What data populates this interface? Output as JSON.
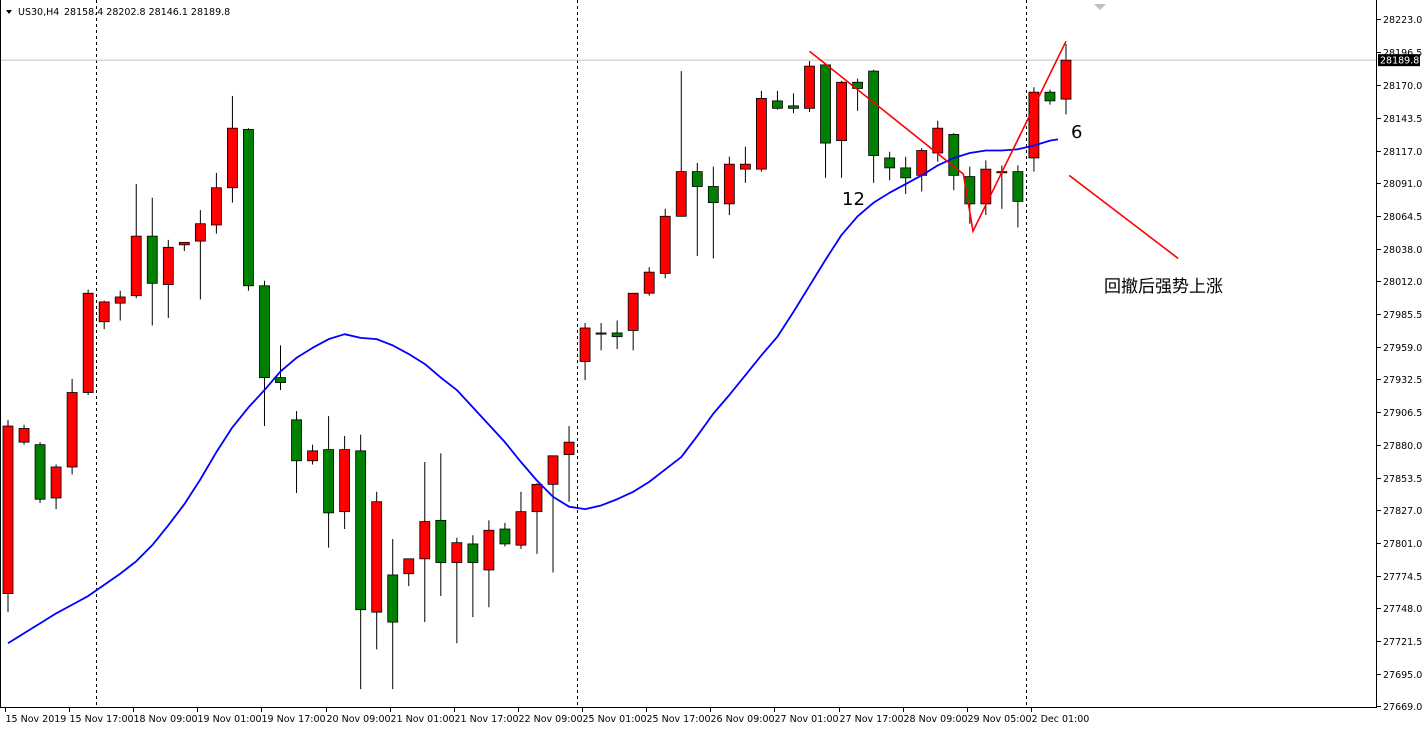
{
  "symbol_info": {
    "symbol": "US30,H4",
    "ohlc": "28158.4 28202.8 28146.1 28189.8"
  },
  "annotations": {
    "wave_label_left": "12",
    "wave_label_right": "6",
    "comment": "回撤后强势上涨"
  },
  "colors": {
    "bull": "#ff0000",
    "bear": "#008000",
    "ma": "#0000ff",
    "pattern": "#ff0000",
    "grid": "#000000",
    "background": "#ffffff"
  },
  "chart_data": {
    "type": "candlestick",
    "symbol": "US30",
    "timeframe": "H4",
    "current_price": 28189.8,
    "price_range": [
      27669.4,
      28227.0
    ],
    "y_ticks": [
      28223.0,
      28196.5,
      28170.0,
      28143.5,
      28117.0,
      28091.0,
      28064.5,
      28038.0,
      28012.0,
      27985.5,
      27959.0,
      27932.5,
      27906.5,
      27880.0,
      27853.5,
      27827.0,
      27801.0,
      27774.5,
      27748.0,
      27721.5,
      27695.0,
      27669.0
    ],
    "y_tick_labels": [
      "28223.0",
      "28196.5",
      "28170.0",
      "28143.5",
      "28117.0",
      "28091.0",
      "28064.5",
      "28038.0",
      "28012.0",
      "27985.5",
      "27959.0",
      "27932.5",
      "27906.5",
      "27880.0",
      "27853.5",
      "27827.0",
      "27801.0",
      "27774.5",
      "27748.0",
      "27721.5",
      "27695.0",
      "27669.0"
    ],
    "current_price_label": "28189.8",
    "x_labels": [
      {
        "index": 0,
        "text": "15 Nov 2019"
      },
      {
        "index": 4,
        "text": "15 Nov 17:00"
      },
      {
        "index": 8,
        "text": "18 Nov 09:00"
      },
      {
        "index": 12,
        "text": "19 Nov 01:00"
      },
      {
        "index": 16,
        "text": "19 Nov 17:00"
      },
      {
        "index": 20,
        "text": "20 Nov 09:00"
      },
      {
        "index": 24,
        "text": "21 Nov 01:00"
      },
      {
        "index": 28,
        "text": "21 Nov 17:00"
      },
      {
        "index": 32,
        "text": "22 Nov 09:00"
      },
      {
        "index": 36,
        "text": "25 Nov 01:00"
      },
      {
        "index": 40,
        "text": "25 Nov 17:00"
      },
      {
        "index": 44,
        "text": "26 Nov 09:00"
      },
      {
        "index": 48,
        "text": "27 Nov 01:00"
      },
      {
        "index": 52,
        "text": "27 Nov 17:00"
      },
      {
        "index": 56,
        "text": "28 Nov 09:00"
      },
      {
        "index": 60,
        "text": "29 Nov 05:00"
      },
      {
        "index": 64,
        "text": "2 Dec 01:00"
      }
    ],
    "day_separators": [
      5.5,
      35.5,
      63.5
    ],
    "candles": [
      {
        "o": 27760,
        "h": 27900,
        "l": 27745,
        "c": 27895
      },
      {
        "o": 27882,
        "h": 27896,
        "l": 27880,
        "c": 27893
      },
      {
        "o": 27880,
        "h": 27882,
        "l": 27833,
        "c": 27836
      },
      {
        "o": 27837,
        "h": 27864,
        "l": 27828,
        "c": 27862
      },
      {
        "o": 27862,
        "h": 27933,
        "l": 27856,
        "c": 27922
      },
      {
        "o": 27922,
        "h": 28005,
        "l": 27920,
        "c": 28002
      },
      {
        "o": 27979,
        "h": 27996,
        "l": 27973,
        "c": 27995
      },
      {
        "o": 27994,
        "h": 28004,
        "l": 27980,
        "c": 27999
      },
      {
        "o": 28000,
        "h": 28090,
        "l": 27998,
        "c": 28048
      },
      {
        "o": 28048,
        "h": 28079,
        "l": 27976,
        "c": 28010
      },
      {
        "o": 28009,
        "h": 28045,
        "l": 27982,
        "c": 28039
      },
      {
        "o": 28041,
        "h": 28042,
        "l": 28036,
        "c": 28043
      },
      {
        "o": 28044,
        "h": 28069,
        "l": 27997,
        "c": 28058
      },
      {
        "o": 28057,
        "h": 28099,
        "l": 28050,
        "c": 28087
      },
      {
        "o": 28087,
        "h": 28161,
        "l": 28075,
        "c": 28135
      },
      {
        "o": 28134,
        "h": 28135,
        "l": 28004,
        "c": 28008
      },
      {
        "o": 28008,
        "h": 28012,
        "l": 27895,
        "c": 27934
      },
      {
        "o": 27934,
        "h": 27960,
        "l": 27924,
        "c": 27930
      },
      {
        "o": 27900,
        "h": 27907,
        "l": 27841,
        "c": 27867
      },
      {
        "o": 27867,
        "h": 27880,
        "l": 27864,
        "c": 27875
      },
      {
        "o": 27876,
        "h": 27903,
        "l": 27797,
        "c": 27825
      },
      {
        "o": 27826,
        "h": 27887,
        "l": 27812,
        "c": 27876
      },
      {
        "o": 27875,
        "h": 27888,
        "l": 27683,
        "c": 27747
      },
      {
        "o": 27745,
        "h": 27842,
        "l": 27715,
        "c": 27834
      },
      {
        "o": 27775,
        "h": 27804,
        "l": 27683,
        "c": 27737
      },
      {
        "o": 27776,
        "h": 27788,
        "l": 27766,
        "c": 27788
      },
      {
        "o": 27788,
        "h": 27866,
        "l": 27737,
        "c": 27818
      },
      {
        "o": 27819,
        "h": 27873,
        "l": 27758,
        "c": 27785
      },
      {
        "o": 27785,
        "h": 27805,
        "l": 27720,
        "c": 27801
      },
      {
        "o": 27800,
        "h": 27807,
        "l": 27741,
        "c": 27785
      },
      {
        "o": 27779,
        "h": 27819,
        "l": 27749,
        "c": 27811
      },
      {
        "o": 27812,
        "h": 27817,
        "l": 27798,
        "c": 27800
      },
      {
        "o": 27799,
        "h": 27842,
        "l": 27796,
        "c": 27826
      },
      {
        "o": 27826,
        "h": 27849,
        "l": 27792,
        "c": 27848
      },
      {
        "o": 27848,
        "h": 27869,
        "l": 27777,
        "c": 27871
      },
      {
        "o": 27872,
        "h": 27895,
        "l": 27834,
        "c": 27882
      },
      {
        "o": 27947,
        "h": 27978,
        "l": 27932,
        "c": 27974
      },
      {
        "o": 27970,
        "h": 27978,
        "l": 27956,
        "c": 27970
      },
      {
        "o": 27970,
        "h": 27980,
        "l": 27957,
        "c": 27967
      },
      {
        "o": 27972,
        "h": 28002,
        "l": 27956,
        "c": 28002
      },
      {
        "o": 28002,
        "h": 28023,
        "l": 28000,
        "c": 28019
      },
      {
        "o": 28018,
        "h": 28070,
        "l": 28014,
        "c": 28064
      },
      {
        "o": 28064,
        "h": 28181,
        "l": 28064,
        "c": 28100
      },
      {
        "o": 28100,
        "h": 28107,
        "l": 28032,
        "c": 28088
      },
      {
        "o": 28088,
        "h": 28104,
        "l": 28030,
        "c": 28075
      },
      {
        "o": 28074,
        "h": 28112,
        "l": 28065,
        "c": 28106
      },
      {
        "o": 28102,
        "h": 28120,
        "l": 28091,
        "c": 28106
      },
      {
        "o": 28102,
        "h": 28165,
        "l": 28100,
        "c": 28159
      },
      {
        "o": 28157,
        "h": 28165,
        "l": 28150,
        "c": 28151
      },
      {
        "o": 28153,
        "h": 28163,
        "l": 28147,
        "c": 28151
      },
      {
        "o": 28151,
        "h": 28189,
        "l": 28148,
        "c": 28185
      },
      {
        "o": 28186,
        "h": 28187,
        "l": 28095,
        "c": 28123
      },
      {
        "o": 28125,
        "h": 28173,
        "l": 28095,
        "c": 28172
      },
      {
        "o": 28172,
        "h": 28175,
        "l": 28149,
        "c": 28167
      },
      {
        "o": 28181,
        "h": 28182,
        "l": 28091,
        "c": 28113
      },
      {
        "o": 28111,
        "h": 28116,
        "l": 28093,
        "c": 28103
      },
      {
        "o": 28103,
        "h": 28112,
        "l": 28082,
        "c": 28095
      },
      {
        "o": 28097,
        "h": 28119,
        "l": 28084,
        "c": 28117
      },
      {
        "o": 28115,
        "h": 28141,
        "l": 28108,
        "c": 28135
      },
      {
        "o": 28130,
        "h": 28131,
        "l": 28085,
        "c": 28097
      },
      {
        "o": 28096,
        "h": 28104,
        "l": 28058,
        "c": 28074
      },
      {
        "o": 28074,
        "h": 28109,
        "l": 28065,
        "c": 28102
      },
      {
        "o": 28100,
        "h": 28105,
        "l": 28070,
        "c": 28100
      },
      {
        "o": 28100,
        "h": 28105,
        "l": 28055,
        "c": 28076
      },
      {
        "o": 28111,
        "h": 28168,
        "l": 28100,
        "c": 28164
      },
      {
        "o": 28164,
        "h": 28166,
        "l": 28154,
        "c": 28157
      },
      {
        "o": 28158.4,
        "h": 28202.8,
        "l": 28146.1,
        "c": 28189.8
      }
    ],
    "ma": [
      [
        0,
        27720
      ],
      [
        2,
        27728
      ],
      [
        4,
        27736
      ],
      [
        6,
        27744
      ],
      [
        8,
        27751
      ],
      [
        10,
        27758
      ],
      [
        12,
        27767
      ],
      [
        14,
        27776
      ],
      [
        16,
        27786
      ],
      [
        18,
        27799
      ],
      [
        20,
        27815
      ],
      [
        22,
        27832
      ],
      [
        24,
        27852
      ],
      [
        26,
        27874
      ],
      [
        28,
        27894
      ],
      [
        30,
        27910
      ],
      [
        32,
        27924
      ],
      [
        34,
        27939
      ],
      [
        36,
        27950
      ],
      [
        38,
        27958
      ],
      [
        40,
        27965
      ],
      [
        42,
        27969
      ],
      [
        44,
        27966
      ],
      [
        46,
        27965
      ],
      [
        48,
        27960
      ],
      [
        50,
        27953
      ],
      [
        52,
        27945
      ],
      [
        54,
        27934
      ],
      [
        56,
        27924
      ],
      [
        58,
        27910
      ],
      [
        60,
        27896
      ],
      [
        62,
        27882
      ],
      [
        64,
        27866
      ],
      [
        66,
        27851
      ],
      [
        68,
        27838
      ],
      [
        70,
        27830
      ],
      [
        72,
        27828
      ],
      [
        74,
        27831
      ],
      [
        76,
        27836
      ],
      [
        78,
        27842
      ],
      [
        80,
        27850
      ],
      [
        82,
        27860
      ],
      [
        84,
        27870
      ],
      [
        86,
        27887
      ],
      [
        88,
        27905
      ],
      [
        90,
        27920
      ],
      [
        92,
        27936
      ],
      [
        94,
        27952
      ],
      [
        96,
        27967
      ],
      [
        98,
        27987
      ],
      [
        100,
        28008
      ],
      [
        102,
        28029
      ],
      [
        104,
        28049
      ],
      [
        106,
        28064
      ],
      [
        108,
        28075
      ],
      [
        110,
        28083
      ],
      [
        112,
        28090
      ],
      [
        114,
        28097
      ],
      [
        116,
        28105
      ],
      [
        118,
        28111
      ],
      [
        120,
        28115
      ],
      [
        122,
        28117
      ],
      [
        124,
        28117
      ],
      [
        126,
        28118
      ],
      [
        128,
        28121
      ],
      [
        130,
        28125
      ],
      [
        131,
        28126
      ]
    ],
    "zigzag": [
      {
        "x": 50.0,
        "y": 28197
      },
      {
        "x": 59.6,
        "y": 28098
      },
      {
        "x": 60.2,
        "y": 28052
      },
      {
        "x": 66.0,
        "y": 28205
      }
    ],
    "arrow_line": {
      "x1": 66.2,
      "y1": 28097,
      "x2": 73.0,
      "y2": 28030
    }
  }
}
